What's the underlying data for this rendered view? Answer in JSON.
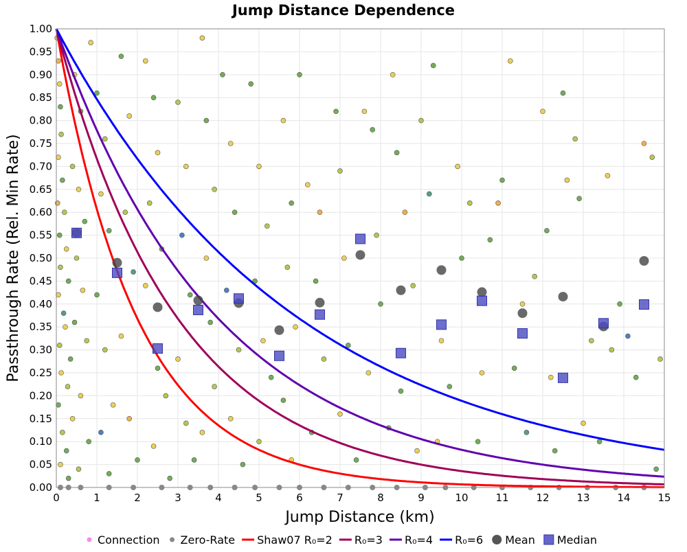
{
  "chart_data": {
    "type": "scatter",
    "title": "Jump Distance Dependence",
    "xlabel": "Jump Distance (km)",
    "ylabel": "Passthrough Rate (Rel. Min Rate)",
    "xlim": [
      0,
      15
    ],
    "ylim": [
      0,
      1
    ],
    "xticks": [
      "0",
      "1",
      "2",
      "3",
      "4",
      "5",
      "6",
      "7",
      "8",
      "9",
      "10",
      "11",
      "12",
      "13",
      "14",
      "15"
    ],
    "yticks": [
      "0.00",
      "0.05",
      "0.10",
      "0.15",
      "0.20",
      "0.25",
      "0.30",
      "0.35",
      "0.40",
      "0.45",
      "0.50",
      "0.55",
      "0.60",
      "0.65",
      "0.70",
      "0.75",
      "0.80",
      "0.85",
      "0.90",
      "0.95",
      "1.00"
    ],
    "grid": true,
    "legend_position": "bottom",
    "legend": [
      {
        "label": "Connection",
        "kind": "dot",
        "color": "#f58cf0"
      },
      {
        "label": "Zero-Rate",
        "kind": "dot",
        "color": "#888888"
      },
      {
        "label": "Shaw07 R₀=2",
        "kind": "line",
        "color": "#ff0000"
      },
      {
        "label": "R₀=3",
        "kind": "line",
        "color": "#a0005a"
      },
      {
        "label": "R₀=4",
        "kind": "line",
        "color": "#6000b0"
      },
      {
        "label": "R₀=6",
        "kind": "line",
        "color": "#0000ff"
      },
      {
        "label": "Mean",
        "kind": "circle",
        "color": "#555555"
      },
      {
        "label": "Median",
        "kind": "square",
        "color": "#5555cc"
      }
    ],
    "curves": [
      {
        "name": "Shaw07 R0=2",
        "formula": "exp(-x/R0)",
        "R0": 2,
        "color": "#ff0000"
      },
      {
        "name": "R0=3",
        "R0": 3,
        "color": "#a0005a"
      },
      {
        "name": "R0=4",
        "R0": 4,
        "color": "#6000b0"
      },
      {
        "name": "R0=6",
        "R0": 6,
        "color": "#0000ff"
      }
    ],
    "bin_x": [
      0.5,
      1.5,
      2.5,
      3.5,
      4.5,
      5.5,
      6.5,
      7.5,
      8.5,
      9.5,
      10.5,
      11.5,
      12.5,
      13.5,
      14.5
    ],
    "mean": [
      0.555,
      0.49,
      0.393,
      0.408,
      0.402,
      0.343,
      0.403,
      0.507,
      0.43,
      0.474,
      0.426,
      0.38,
      0.416,
      0.351,
      0.494
    ],
    "median": [
      0.555,
      0.468,
      0.303,
      0.387,
      0.412,
      0.287,
      0.377,
      0.542,
      0.293,
      0.355,
      0.407,
      0.336,
      0.239,
      0.358,
      0.399
    ],
    "point_colors": [
      "#e8c83a",
      "#f0a030",
      "#5c9e3c",
      "#3d8a78",
      "#2f6bb5",
      "#a9bd34"
    ],
    "connections": [
      [
        0.02,
        0.98,
        0
      ],
      [
        0.05,
        0.93,
        1
      ],
      [
        0.08,
        0.88,
        0
      ],
      [
        0.1,
        0.83,
        2
      ],
      [
        0.12,
        0.77,
        5
      ],
      [
        0.05,
        0.72,
        0
      ],
      [
        0.15,
        0.67,
        2
      ],
      [
        0.03,
        0.62,
        1
      ],
      [
        0.2,
        0.6,
        5
      ],
      [
        0.08,
        0.55,
        2
      ],
      [
        0.25,
        0.52,
        0
      ],
      [
        0.1,
        0.48,
        5
      ],
      [
        0.3,
        0.45,
        2
      ],
      [
        0.05,
        0.42,
        0
      ],
      [
        0.18,
        0.38,
        3
      ],
      [
        0.22,
        0.35,
        0
      ],
      [
        0.08,
        0.31,
        5
      ],
      [
        0.35,
        0.28,
        2
      ],
      [
        0.12,
        0.25,
        0
      ],
      [
        0.28,
        0.22,
        5
      ],
      [
        0.05,
        0.18,
        2
      ],
      [
        0.4,
        0.15,
        0
      ],
      [
        0.15,
        0.12,
        5
      ],
      [
        0.25,
        0.08,
        2
      ],
      [
        0.1,
        0.05,
        0
      ],
      [
        0.3,
        0.02,
        2
      ],
      [
        0.45,
        0.9,
        0
      ],
      [
        0.6,
        0.82,
        2
      ],
      [
        0.4,
        0.7,
        5
      ],
      [
        0.55,
        0.65,
        0
      ],
      [
        0.7,
        0.58,
        2
      ],
      [
        0.5,
        0.5,
        5
      ],
      [
        0.65,
        0.43,
        0
      ],
      [
        0.45,
        0.36,
        2
      ],
      [
        0.75,
        0.32,
        5
      ],
      [
        0.6,
        0.2,
        0
      ],
      [
        0.8,
        0.1,
        2
      ],
      [
        0.55,
        0.04,
        5
      ],
      [
        0.85,
        0.97,
        0
      ],
      [
        1.0,
        0.86,
        2
      ],
      [
        1.2,
        0.76,
        5
      ],
      [
        1.1,
        0.64,
        0
      ],
      [
        1.3,
        0.56,
        2
      ],
      [
        1.0,
        0.42,
        2
      ],
      [
        1.2,
        0.3,
        5
      ],
      [
        1.4,
        0.18,
        0
      ],
      [
        1.1,
        0.12,
        4
      ],
      [
        1.3,
        0.03,
        2
      ],
      [
        1.6,
        0.94,
        2
      ],
      [
        1.8,
        0.81,
        0
      ],
      [
        1.7,
        0.6,
        5
      ],
      [
        1.9,
        0.47,
        3
      ],
      [
        1.6,
        0.33,
        0
      ],
      [
        1.8,
        0.15,
        1
      ],
      [
        2.0,
        0.06,
        2
      ],
      [
        2.2,
        0.93,
        0
      ],
      [
        2.4,
        0.85,
        2
      ],
      [
        2.5,
        0.73,
        0
      ],
      [
        2.3,
        0.62,
        5
      ],
      [
        2.6,
        0.52,
        2
      ],
      [
        2.2,
        0.44,
        0
      ],
      [
        2.5,
        0.26,
        2
      ],
      [
        2.7,
        0.2,
        5
      ],
      [
        2.4,
        0.09,
        0
      ],
      [
        2.8,
        0.02,
        2
      ],
      [
        3.0,
        0.84,
        5
      ],
      [
        3.2,
        0.7,
        0
      ],
      [
        3.1,
        0.55,
        4
      ],
      [
        3.3,
        0.42,
        2
      ],
      [
        3.0,
        0.28,
        0
      ],
      [
        3.2,
        0.14,
        5
      ],
      [
        3.4,
        0.06,
        2
      ],
      [
        3.6,
        0.98,
        0
      ],
      [
        3.7,
        0.8,
        2
      ],
      [
        3.9,
        0.65,
        5
      ],
      [
        3.7,
        0.5,
        0
      ],
      [
        3.8,
        0.36,
        2
      ],
      [
        3.9,
        0.22,
        5
      ],
      [
        3.6,
        0.12,
        0
      ],
      [
        4.1,
        0.9,
        2
      ],
      [
        4.3,
        0.75,
        0
      ],
      [
        4.4,
        0.6,
        2
      ],
      [
        4.2,
        0.43,
        4
      ],
      [
        4.5,
        0.3,
        5
      ],
      [
        4.3,
        0.15,
        0
      ],
      [
        4.6,
        0.05,
        2
      ],
      [
        4.8,
        0.88,
        2
      ],
      [
        5.0,
        0.7,
        0
      ],
      [
        5.2,
        0.57,
        5
      ],
      [
        4.9,
        0.45,
        2
      ],
      [
        5.1,
        0.32,
        0
      ],
      [
        5.3,
        0.24,
        2
      ],
      [
        5.0,
        0.1,
        5
      ],
      [
        5.6,
        0.8,
        0
      ],
      [
        5.8,
        0.62,
        2
      ],
      [
        5.7,
        0.48,
        5
      ],
      [
        5.9,
        0.35,
        0
      ],
      [
        5.6,
        0.19,
        2
      ],
      [
        5.8,
        0.06,
        0
      ],
      [
        6.0,
        0.9,
        2
      ],
      [
        6.2,
        0.66,
        0
      ],
      [
        6.5,
        0.6,
        1
      ],
      [
        6.4,
        0.45,
        2
      ],
      [
        6.6,
        0.28,
        5
      ],
      [
        6.3,
        0.12,
        2
      ],
      [
        6.9,
        0.82,
        2
      ],
      [
        7.0,
        0.69,
        5
      ],
      [
        7.1,
        0.5,
        0
      ],
      [
        7.2,
        0.31,
        2
      ],
      [
        7.0,
        0.16,
        0
      ],
      [
        7.4,
        0.06,
        2
      ],
      [
        7.6,
        0.82,
        0
      ],
      [
        7.8,
        0.78,
        2
      ],
      [
        7.9,
        0.55,
        5
      ],
      [
        8.0,
        0.4,
        2
      ],
      [
        7.7,
        0.25,
        0
      ],
      [
        8.2,
        0.13,
        2
      ],
      [
        8.3,
        0.9,
        0
      ],
      [
        8.4,
        0.73,
        2
      ],
      [
        8.6,
        0.6,
        1
      ],
      [
        8.8,
        0.44,
        5
      ],
      [
        8.5,
        0.21,
        2
      ],
      [
        8.9,
        0.08,
        0
      ],
      [
        9.0,
        0.8,
        5
      ],
      [
        9.2,
        0.64,
        3
      ],
      [
        9.3,
        0.92,
        2
      ],
      [
        9.5,
        0.32,
        0
      ],
      [
        9.7,
        0.22,
        2
      ],
      [
        9.4,
        0.1,
        0
      ],
      [
        9.9,
        0.7,
        0
      ],
      [
        10.0,
        0.5,
        2
      ],
      [
        10.2,
        0.62,
        5
      ],
      [
        10.5,
        0.25,
        0
      ],
      [
        10.4,
        0.1,
        2
      ],
      [
        10.7,
        0.54,
        2
      ],
      [
        10.9,
        0.62,
        1
      ],
      [
        11.0,
        0.67,
        2
      ],
      [
        11.2,
        0.93,
        0
      ],
      [
        11.3,
        0.26,
        2
      ],
      [
        11.5,
        0.4,
        0
      ],
      [
        11.6,
        0.12,
        3
      ],
      [
        11.8,
        0.46,
        5
      ],
      [
        12.0,
        0.82,
        0
      ],
      [
        12.1,
        0.56,
        2
      ],
      [
        12.2,
        0.24,
        0
      ],
      [
        12.3,
        0.08,
        2
      ],
      [
        12.5,
        0.86,
        2
      ],
      [
        12.6,
        0.67,
        0
      ],
      [
        12.8,
        0.76,
        5
      ],
      [
        12.9,
        0.63,
        2
      ],
      [
        13.0,
        0.14,
        0
      ],
      [
        13.2,
        0.32,
        5
      ],
      [
        13.4,
        0.1,
        2
      ],
      [
        13.6,
        0.68,
        0
      ],
      [
        13.7,
        0.3,
        5
      ],
      [
        13.9,
        0.4,
        2
      ],
      [
        14.1,
        0.33,
        4
      ],
      [
        14.3,
        0.24,
        2
      ],
      [
        14.5,
        0.75,
        1
      ],
      [
        14.7,
        0.72,
        5
      ],
      [
        14.9,
        0.28,
        5
      ],
      [
        14.8,
        0.04,
        2
      ]
    ],
    "zero_rate_x": [
      0.1,
      0.3,
      0.6,
      1.3,
      1.9,
      2.6,
      3.3,
      3.8,
      4.4,
      4.9,
      5.5,
      6.0,
      6.6,
      7.2,
      7.8,
      8.4,
      9.1,
      9.6,
      10.3,
      11.0,
      11.7,
      12.4,
      13.1,
      13.8,
      14.5
    ]
  }
}
